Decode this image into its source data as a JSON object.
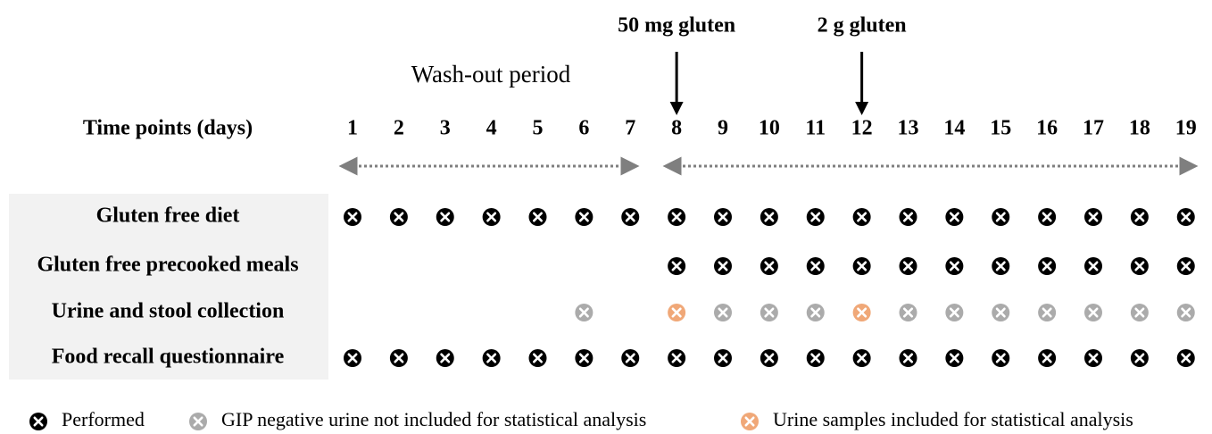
{
  "annotations": [
    {
      "label": "50 mg gluten",
      "day": 8
    },
    {
      "label": "2 g gluten",
      "day": 12
    }
  ],
  "period_label": "Wash-out period",
  "header": "Time points (days)",
  "days": [
    1,
    2,
    3,
    4,
    5,
    6,
    7,
    8,
    9,
    10,
    11,
    12,
    13,
    14,
    15,
    16,
    17,
    18,
    19
  ],
  "rows": [
    {
      "label": "Gluten free diet",
      "marks": [
        0,
        0,
        0,
        0,
        0,
        0,
        0,
        0,
        0,
        0,
        0,
        0,
        0,
        0,
        0,
        0,
        0,
        0,
        0
      ]
    },
    {
      "label": "Gluten free precooked meals",
      "marks": [
        null,
        null,
        null,
        null,
        null,
        null,
        null,
        0,
        0,
        0,
        0,
        0,
        0,
        0,
        0,
        0,
        0,
        0,
        0
      ]
    },
    {
      "label": "Urine and stool collection",
      "marks": [
        null,
        null,
        null,
        null,
        null,
        1,
        null,
        2,
        1,
        1,
        1,
        2,
        1,
        1,
        1,
        1,
        1,
        1,
        1
      ]
    },
    {
      "label": "Food recall questionnaire",
      "marks": [
        0,
        0,
        0,
        0,
        0,
        0,
        0,
        0,
        0,
        0,
        0,
        0,
        0,
        0,
        0,
        0,
        0,
        0,
        0
      ]
    }
  ],
  "legend": [
    {
      "label": "Performed",
      "color": "#000000"
    },
    {
      "label": "GIP negative urine not included for statistical analysis",
      "color": "#ababab"
    },
    {
      "label": "Urine samples included for statistical analysis",
      "color": "#f0a878"
    }
  ]
}
